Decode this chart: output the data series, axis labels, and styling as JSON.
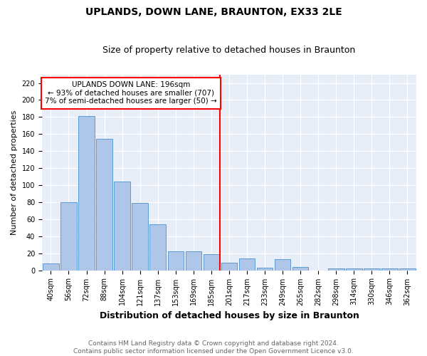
{
  "title": "UPLANDS, DOWN LANE, BRAUNTON, EX33 2LE",
  "subtitle": "Size of property relative to detached houses in Braunton",
  "xlabel": "Distribution of detached houses by size in Braunton",
  "ylabel": "Number of detached properties",
  "categories": [
    "40sqm",
    "56sqm",
    "72sqm",
    "88sqm",
    "104sqm",
    "121sqm",
    "137sqm",
    "153sqm",
    "169sqm",
    "185sqm",
    "201sqm",
    "217sqm",
    "233sqm",
    "249sqm",
    "265sqm",
    "282sqm",
    "298sqm",
    "314sqm",
    "330sqm",
    "346sqm",
    "362sqm"
  ],
  "values": [
    8,
    80,
    181,
    154,
    104,
    79,
    54,
    22,
    22,
    19,
    9,
    14,
    3,
    13,
    4,
    0,
    2,
    2,
    2,
    2,
    2
  ],
  "bar_color": "#aec6e8",
  "bar_edge_color": "#5b9bd5",
  "annotation_line1": "UPLANDS DOWN LANE: 196sqm",
  "annotation_line2": "← 93% of detached houses are smaller (707)",
  "annotation_line3": "7% of semi-detached houses are larger (50) →",
  "ylim": [
    0,
    230
  ],
  "yticks": [
    0,
    20,
    40,
    60,
    80,
    100,
    120,
    140,
    160,
    180,
    200,
    220
  ],
  "bg_color": "#e8eef8",
  "footnote": "Contains HM Land Registry data © Crown copyright and database right 2024.\nContains public sector information licensed under the Open Government Licence v3.0.",
  "title_fontsize": 10,
  "subtitle_fontsize": 9,
  "xlabel_fontsize": 9,
  "ylabel_fontsize": 8,
  "tick_fontsize": 7,
  "annot_fontsize": 7.5,
  "footnote_fontsize": 6.5
}
